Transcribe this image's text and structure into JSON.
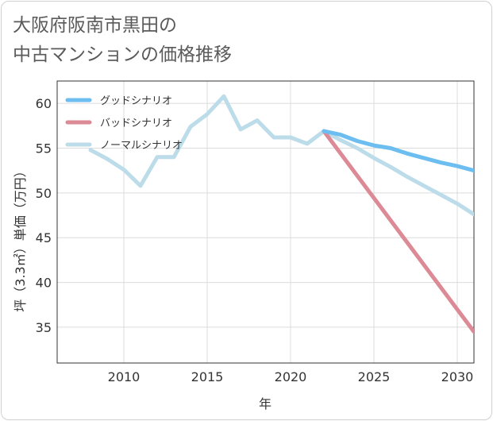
{
  "chart_data": {
    "type": "line",
    "title": [
      "大阪府阪南市黒田の",
      "中古マンションの価格推移"
    ],
    "xlabel": "年",
    "ylabel": "坪（3.3㎡）単価（万円）",
    "xlim": [
      2006,
      2031
    ],
    "ylim": [
      31,
      62.5
    ],
    "xticks": [
      2010,
      2015,
      2020,
      2025,
      2030
    ],
    "yticks": [
      35,
      40,
      45,
      50,
      55,
      60
    ],
    "grid": true,
    "legend_position": "top-left",
    "series": [
      {
        "name": "グッドシナリオ",
        "color": "#6cbdf0",
        "x": [
          2022,
          2023,
          2024,
          2025,
          2026,
          2027,
          2028,
          2029,
          2030,
          2031
        ],
        "y": [
          56.9,
          56.5,
          55.8,
          55.3,
          55.0,
          54.4,
          53.9,
          53.4,
          53.0,
          52.5
        ]
      },
      {
        "name": "バッドシナリオ",
        "color": "#dc8a95",
        "x": [
          2022,
          2031
        ],
        "y": [
          56.9,
          34.5
        ]
      },
      {
        "name": "ノーマルシナリオ",
        "color": "#bcdcea",
        "x": [
          2008,
          2009,
          2010,
          2011,
          2012,
          2013,
          2014,
          2015,
          2016,
          2017,
          2018,
          2019,
          2020,
          2021,
          2022,
          2023,
          2024,
          2025,
          2026,
          2027,
          2028,
          2029,
          2030,
          2031
        ],
        "y": [
          54.8,
          53.8,
          52.6,
          50.8,
          54.0,
          54.0,
          57.4,
          58.8,
          60.8,
          57.1,
          58.1,
          56.2,
          56.2,
          55.5,
          56.9,
          55.9,
          55.0,
          53.9,
          52.9,
          51.8,
          50.8,
          49.8,
          48.8,
          47.6
        ]
      }
    ]
  }
}
